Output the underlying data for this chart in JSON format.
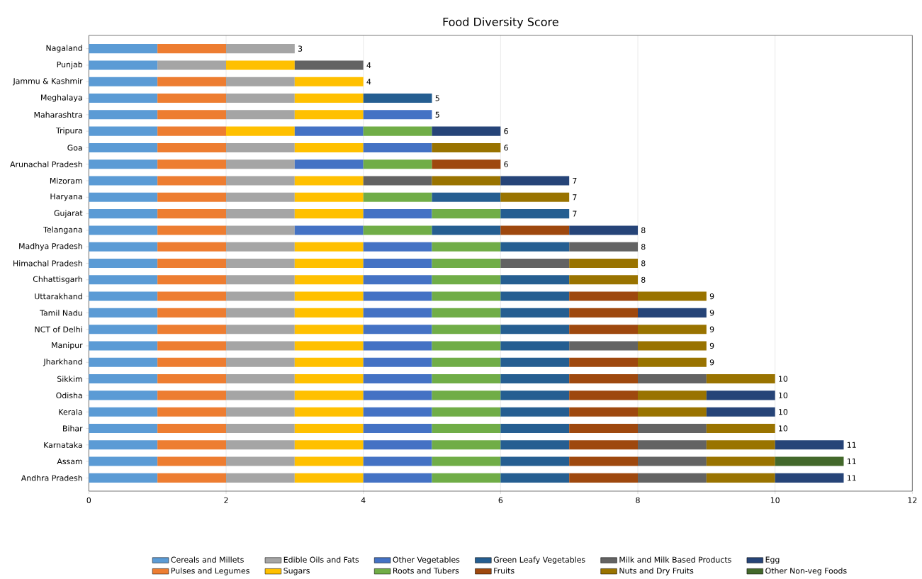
{
  "chart_data": {
    "type": "bar",
    "orientation": "horizontal",
    "stacked": true,
    "title": "Food Diversity Score",
    "categories": [
      "Nagaland",
      "Punjab",
      "Jammu & Kashmir",
      "Meghalaya",
      "Maharashtra",
      "Tripura",
      "Goa",
      "Arunachal Pradesh",
      "Mizoram",
      "Haryana",
      "Gujarat",
      "Telangana",
      "Madhya Pradesh",
      "Himachal Pradesh",
      "Chhattisgarh",
      "Uttarakhand",
      "Tamil Nadu",
      "NCT of Delhi",
      "Manipur",
      "Jharkhand",
      "Sikkim",
      "Odisha",
      "Kerala",
      "Bihar",
      "Karnataka",
      "Assam",
      "Andhra Pradesh"
    ],
    "series": [
      {
        "name": "Cereals and Millets",
        "color": "#5b9bd5",
        "values": [
          1,
          1,
          1,
          1,
          1,
          1,
          1,
          1,
          1,
          1,
          1,
          1,
          1,
          1,
          1,
          1,
          1,
          1,
          1,
          1,
          1,
          1,
          1,
          1,
          1,
          1,
          1
        ]
      },
      {
        "name": "Pulses and Legumes",
        "color": "#ed7d31",
        "values": [
          1,
          null,
          1,
          1,
          1,
          1,
          1,
          1,
          1,
          1,
          1,
          1,
          1,
          1,
          1,
          1,
          1,
          1,
          1,
          1,
          1,
          1,
          1,
          1,
          1,
          1,
          1
        ]
      },
      {
        "name": "Edible Oils and Fats",
        "color": "#a5a5a5",
        "values": [
          1,
          1,
          1,
          1,
          1,
          null,
          1,
          1,
          1,
          1,
          1,
          1,
          1,
          1,
          1,
          1,
          1,
          1,
          1,
          1,
          1,
          1,
          1,
          1,
          1,
          1,
          1
        ]
      },
      {
        "name": "Sugars",
        "color": "#ffc000",
        "values": [
          null,
          1,
          1,
          1,
          1,
          1,
          1,
          null,
          1,
          1,
          1,
          null,
          1,
          1,
          1,
          1,
          1,
          1,
          1,
          1,
          1,
          1,
          1,
          1,
          1,
          1,
          1
        ]
      },
      {
        "name": "Other Vegetables",
        "color": "#4472c4",
        "values": [
          null,
          null,
          null,
          null,
          1,
          1,
          1,
          1,
          null,
          null,
          1,
          1,
          1,
          1,
          1,
          1,
          1,
          1,
          1,
          1,
          1,
          1,
          1,
          1,
          1,
          1,
          1
        ]
      },
      {
        "name": "Roots and Tubers",
        "color": "#70ad47",
        "values": [
          null,
          null,
          null,
          null,
          null,
          1,
          null,
          1,
          null,
          1,
          1,
          1,
          1,
          1,
          1,
          1,
          1,
          1,
          1,
          1,
          1,
          1,
          1,
          1,
          1,
          1,
          1
        ]
      },
      {
        "name": "Green Leafy Vegetables",
        "color": "#255e91",
        "values": [
          null,
          null,
          null,
          1,
          null,
          null,
          null,
          null,
          null,
          1,
          1,
          1,
          1,
          null,
          1,
          1,
          1,
          1,
          1,
          1,
          1,
          1,
          1,
          1,
          1,
          1,
          1
        ]
      },
      {
        "name": "Fruits",
        "color": "#9e480e",
        "values": [
          null,
          null,
          null,
          null,
          null,
          null,
          null,
          1,
          null,
          null,
          null,
          1,
          null,
          null,
          null,
          1,
          1,
          1,
          null,
          1,
          1,
          1,
          1,
          1,
          1,
          1,
          1
        ]
      },
      {
        "name": "Milk and Milk Based Products",
        "color": "#636363",
        "values": [
          null,
          1,
          null,
          null,
          null,
          null,
          null,
          null,
          1,
          null,
          null,
          null,
          1,
          1,
          null,
          null,
          null,
          null,
          1,
          null,
          1,
          null,
          null,
          1,
          1,
          1,
          1
        ]
      },
      {
        "name": "Nuts and Dry Fruits",
        "color": "#997300",
        "values": [
          null,
          null,
          null,
          null,
          null,
          null,
          1,
          null,
          1,
          1,
          null,
          null,
          null,
          1,
          1,
          1,
          null,
          1,
          1,
          1,
          1,
          1,
          1,
          1,
          1,
          1,
          1
        ]
      },
      {
        "name": "Egg",
        "color": "#264478",
        "values": [
          null,
          null,
          null,
          null,
          null,
          1,
          null,
          null,
          1,
          null,
          null,
          1,
          null,
          null,
          null,
          null,
          1,
          null,
          null,
          null,
          null,
          1,
          1,
          null,
          1,
          null,
          1
        ]
      },
      {
        "name": "Other Non-veg Foods",
        "color": "#43682b",
        "values": [
          null,
          null,
          null,
          null,
          null,
          null,
          null,
          null,
          null,
          null,
          null,
          null,
          null,
          null,
          null,
          null,
          null,
          null,
          null,
          null,
          null,
          null,
          null,
          null,
          null,
          1,
          null
        ]
      }
    ],
    "totals": [
      "3",
      "4",
      "4",
      "5",
      "5",
      "6",
      "6",
      "6",
      "7",
      "7",
      "7",
      "8",
      "8",
      "8",
      "8",
      "9",
      "9",
      "9",
      "9",
      "9",
      "10",
      "10",
      "10",
      "10",
      "11",
      "11",
      "11"
    ],
    "xlim": [
      0,
      12
    ],
    "xticks": [
      0,
      2,
      4,
      6,
      8,
      10,
      12
    ],
    "grid": "x",
    "legend": "bottom"
  }
}
